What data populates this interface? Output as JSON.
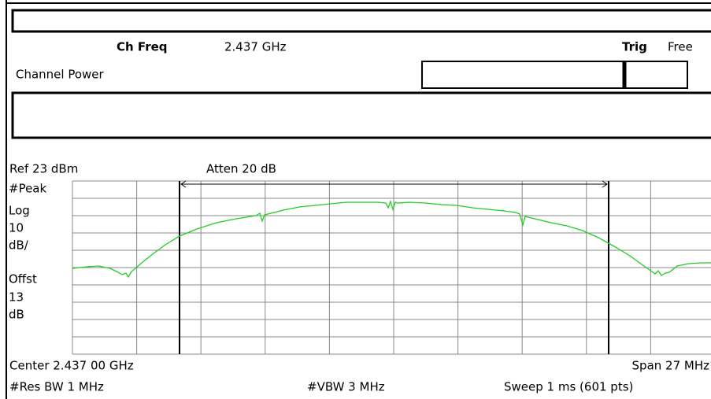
{
  "header": {
    "ch_freq_label": "Ch Freq",
    "ch_freq_value": "2.437 GHz",
    "trig_label": "Trig",
    "trig_value": "Free"
  },
  "measurement": "Channel Power",
  "display": {
    "ref": "Ref 23 dBm",
    "atten": "Atten 20 dB",
    "scale_labels": [
      "#Peak",
      "Log",
      "10",
      "dB/",
      "Offst",
      "13",
      "dB"
    ]
  },
  "footer": {
    "center": "Center 2.437 00 GHz",
    "span": "Span 27 MHz",
    "res_bw": "#Res BW 1 MHz",
    "vbw": "#VBW 3 MHz",
    "sweep": "Sweep 1 ms (601 pts)"
  }
}
